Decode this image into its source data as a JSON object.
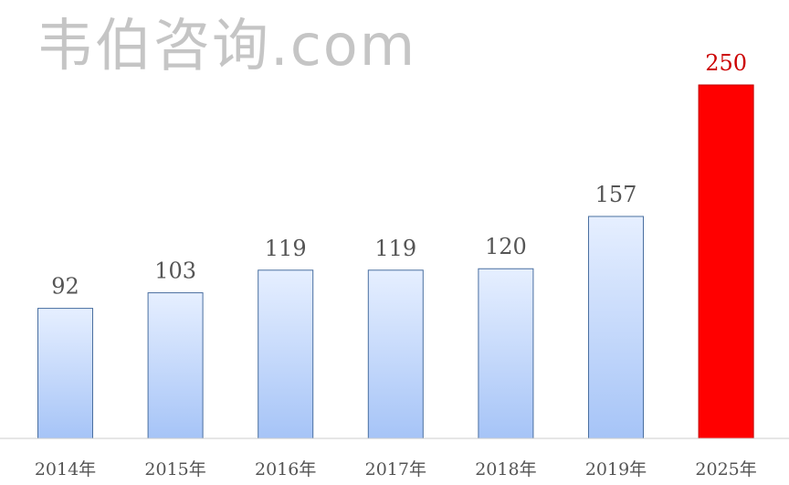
{
  "chart_data": {
    "type": "bar",
    "title": "",
    "xlabel": "",
    "ylabel": "",
    "categories": [
      "2014年",
      "2015年",
      "2016年",
      "2017年",
      "2018年",
      "2019年",
      "2025年"
    ],
    "values": [
      92,
      103,
      119,
      119,
      120,
      157,
      250
    ],
    "ylim": [
      0,
      250
    ],
    "grid": false,
    "data_labels": true,
    "colors": {
      "normal_top": "#e6efff",
      "normal_bottom": "#a6c4f7",
      "normal_border": "#4a6fa0",
      "highlight": "#ff0000",
      "highlight_label": "#cc0000",
      "label": "#555555",
      "axis": "#cccccc"
    },
    "highlight_index": 6
  },
  "watermark": "韦伯咨询.com"
}
